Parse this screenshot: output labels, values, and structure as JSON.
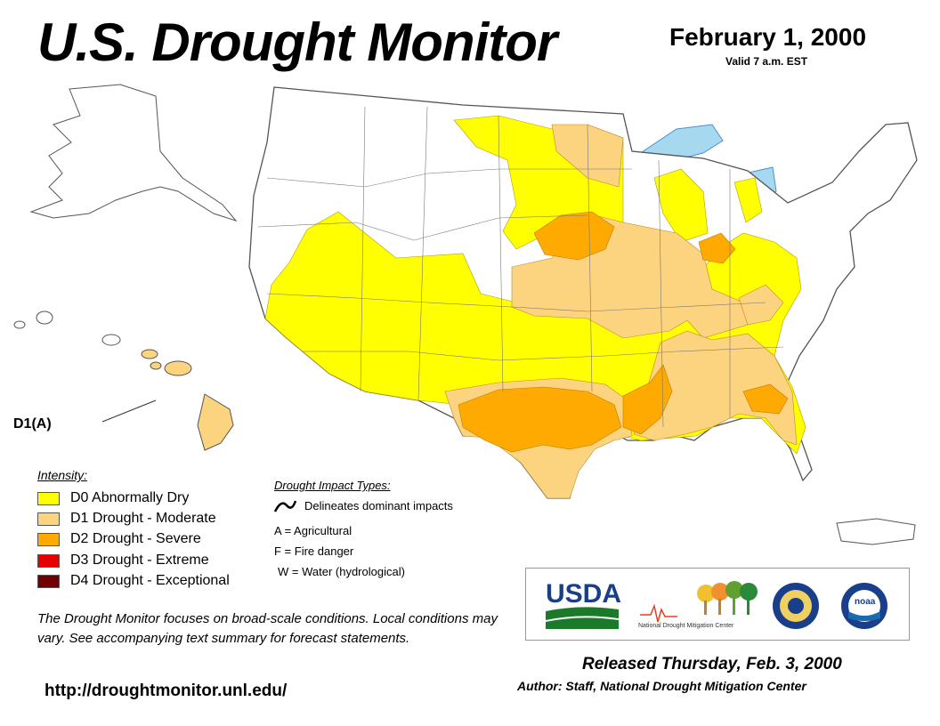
{
  "header": {
    "title": "U.S. Drought Monitor",
    "date": "February 1, 2000",
    "valid": "Valid 7 a.m. EST"
  },
  "map": {
    "hawaii_label": "D1(A)"
  },
  "legend": {
    "title": "Intensity:",
    "items": [
      {
        "code": "D0",
        "label": "D0 Abnormally Dry",
        "color": "#ffff00"
      },
      {
        "code": "D1",
        "label": "D1 Drought - Moderate",
        "color": "#fcd37f"
      },
      {
        "code": "D2",
        "label": "D2 Drought - Severe",
        "color": "#ffaa00"
      },
      {
        "code": "D3",
        "label": "D3 Drought - Extreme",
        "color": "#e60000"
      },
      {
        "code": "D4",
        "label": "D4 Drought - Exceptional",
        "color": "#730000"
      }
    ]
  },
  "impacts": {
    "title": "Drought Impact Types:",
    "delineates": "Delineates dominant impacts",
    "types": [
      "A = Agricultural",
      "F = Fire danger",
      "W = Water (hydrological)"
    ]
  },
  "footer": {
    "disclaimer": "The Drought Monitor focuses on broad-scale conditions. Local conditions may vary. See accompanying text summary for forecast statements.",
    "url": "http://droughtmonitor.unl.edu/",
    "released": "Released Thursday, Feb. 3, 2000",
    "author": "Author: Staff, National Drought Mitigation Center"
  },
  "logos": {
    "usda": "USDA",
    "ndmc": "National Drought Mitigation Center",
    "noaa": "noaa"
  },
  "colors": {
    "water": "#a6d8f0",
    "river": "#4a8fd0",
    "border": "#555555"
  }
}
